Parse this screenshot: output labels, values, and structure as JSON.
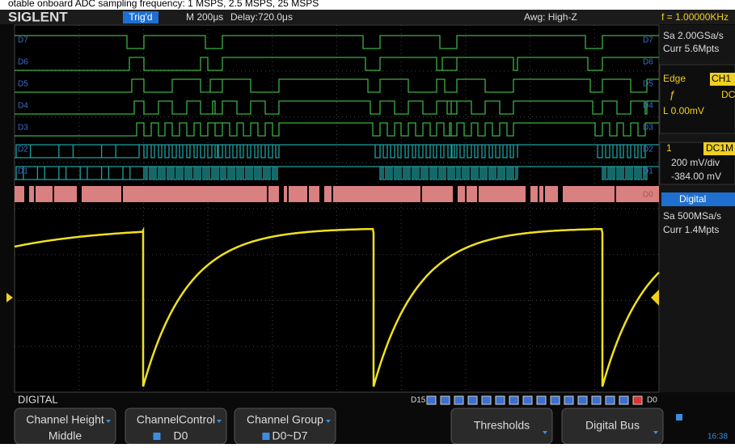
{
  "caption": "otable onboard ADC sampling frequency: 1 MSPS, 2.5 MSPS, 25 MSPS",
  "header": {
    "brand": "SIGLENT",
    "trigger_status": "Trig'd",
    "timebase": "M 200μs",
    "delay": "Delay:720.0μs",
    "awg": "Awg: High-Z",
    "frequency": "f = 1.00000KHz"
  },
  "side_panel": {
    "sample_rate": "Sa 2.00GSa/s",
    "memory_depth": "Curr 5.6Mpts",
    "trigger_type": "Edge",
    "trigger_source": "CH1",
    "trigger_coupling": "DC",
    "trigger_level": "L  0.00mV",
    "channel_number": "1",
    "channel_coupling": "DC1M",
    "volts_per_div": "200 mV/div",
    "offset": "-384.00 mV",
    "digital_label": "Digital",
    "digital_sample_rate": "Sa 500MSa/s",
    "digital_memory_depth": "Curr 1.4Mpts"
  },
  "channels": [
    "D7",
    "D6",
    "D5",
    "D4",
    "D3",
    "D2",
    "D1",
    "D0"
  ],
  "status": {
    "mode": "DIGITAL",
    "bits_high": "D15",
    "bits_low": "D0"
  },
  "menu": [
    {
      "label": "Channel Height",
      "value": "Middle"
    },
    {
      "label": "ChannelControl",
      "value": "D0"
    },
    {
      "label": "Channel Group",
      "value": "D0~D7"
    },
    {
      "label": "Thresholds"
    },
    {
      "label": "Digital Bus"
    }
  ],
  "clock": "16:38"
}
